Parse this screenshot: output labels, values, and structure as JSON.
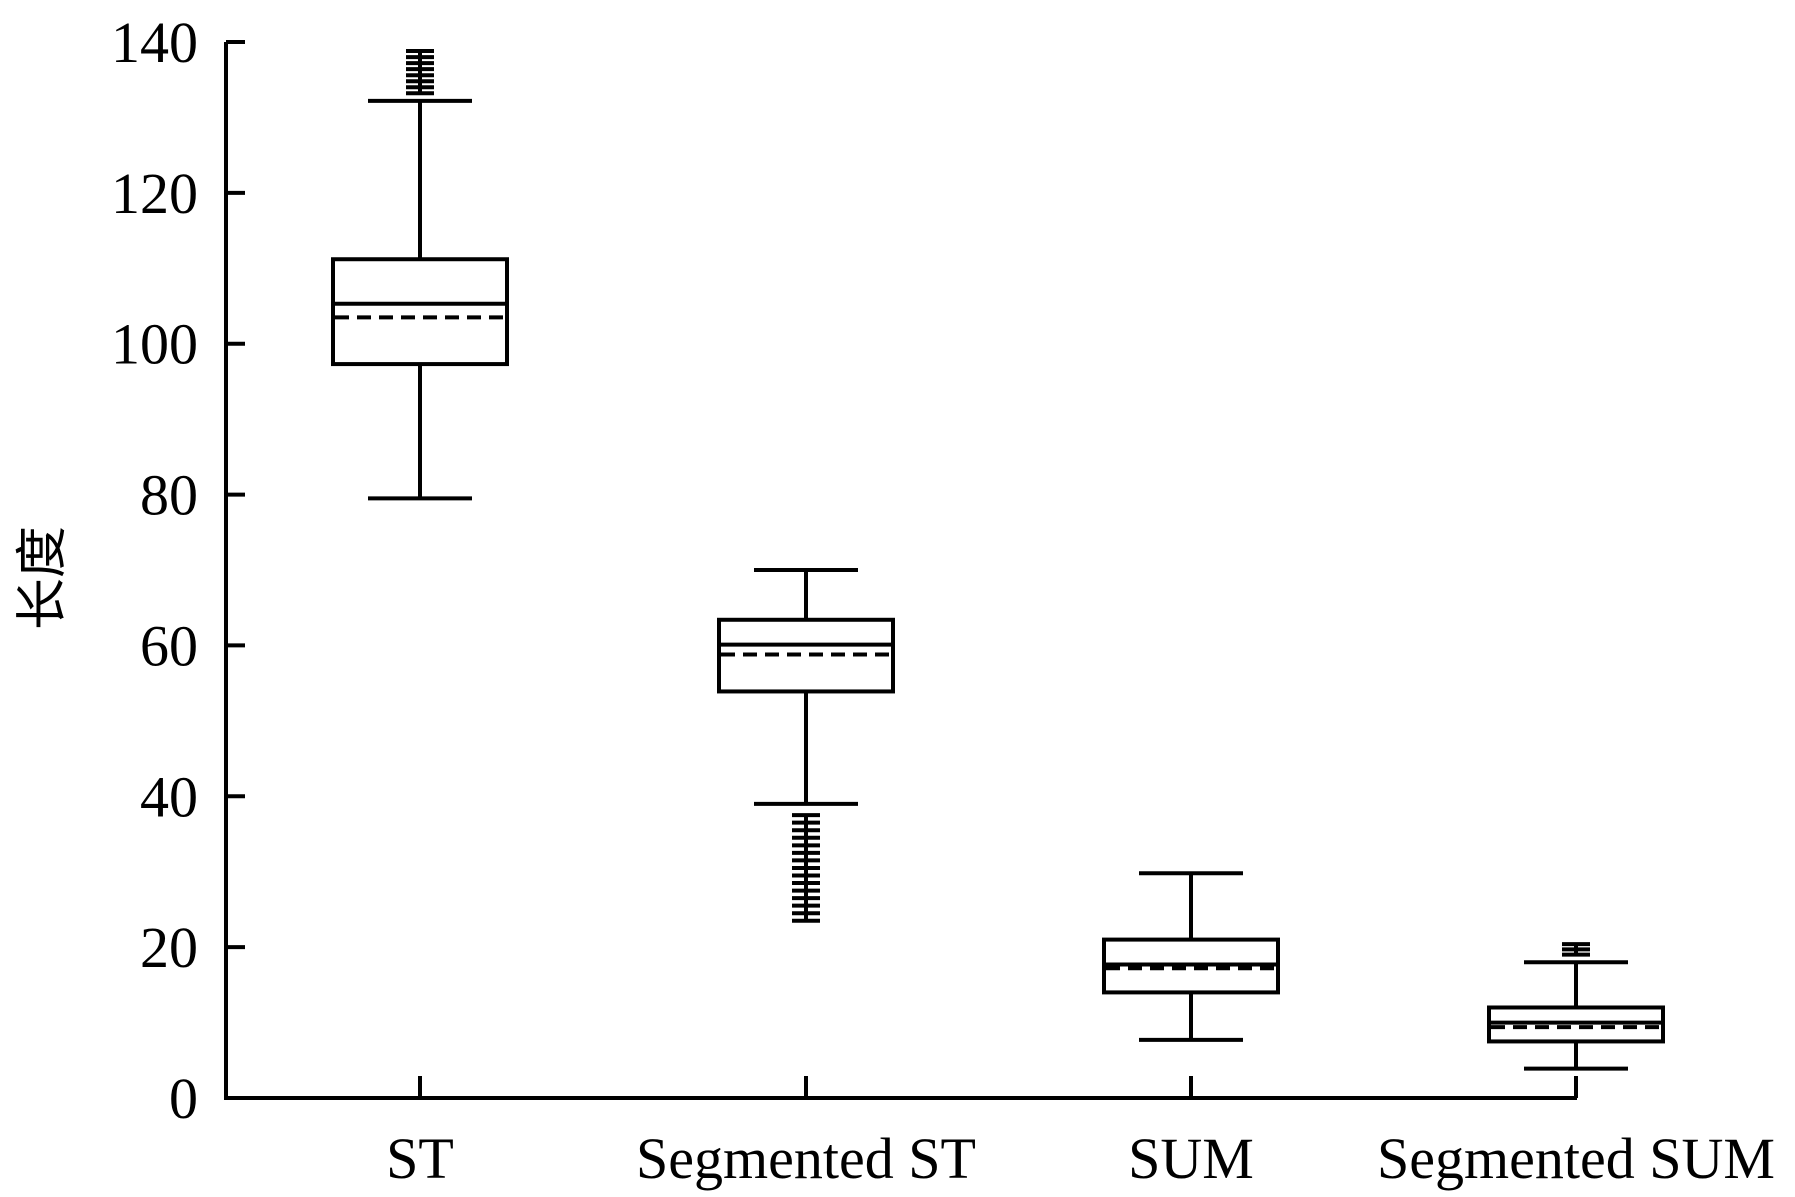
{
  "chart_data": {
    "type": "box",
    "title": "",
    "xlabel": "",
    "ylabel": "长度",
    "ylim": [
      0,
      140
    ],
    "yticks": [
      "0",
      "20",
      "40",
      "60",
      "80",
      "100",
      "120",
      "140"
    ],
    "grid": false,
    "legend": "none",
    "mean_line_style": "dashed",
    "median_line_style": "solid",
    "color": "#000000",
    "categories": [
      "ST",
      "Segmented ST",
      "SUM",
      "Segmented SUM"
    ],
    "boxes": [
      {
        "category": "ST",
        "whisker_low": 79.5,
        "q1": 97.3,
        "median": 105.3,
        "mean": 103.5,
        "q3": 111.2,
        "whisker_high": 132.2,
        "outliers": [
          133.2,
          134.0,
          134.8,
          135.6,
          136.4,
          137.2,
          138.0,
          138.8
        ]
      },
      {
        "category": "Segmented ST",
        "whisker_low": 39.0,
        "q1": 53.9,
        "median": 60.1,
        "mean": 58.8,
        "q3": 63.4,
        "whisker_high": 70.0,
        "outliers": [
          37.5,
          36.5,
          35.5,
          34.5,
          33.5,
          32.5,
          31.5,
          30.5,
          29.5,
          28.5,
          27.5,
          26.5,
          25.5,
          24.5,
          23.5
        ]
      },
      {
        "category": "SUM",
        "whisker_low": 7.7,
        "q1": 14.0,
        "median": 17.7,
        "mean": 17.2,
        "q3": 21.0,
        "whisker_high": 29.8,
        "outliers": []
      },
      {
        "category": "Segmented SUM",
        "whisker_low": 3.9,
        "q1": 7.5,
        "median": 10.0,
        "mean": 9.4,
        "q3": 12.0,
        "whisker_high": 18.0,
        "outliers": [
          19.0,
          19.7,
          20.4
        ]
      }
    ]
  }
}
